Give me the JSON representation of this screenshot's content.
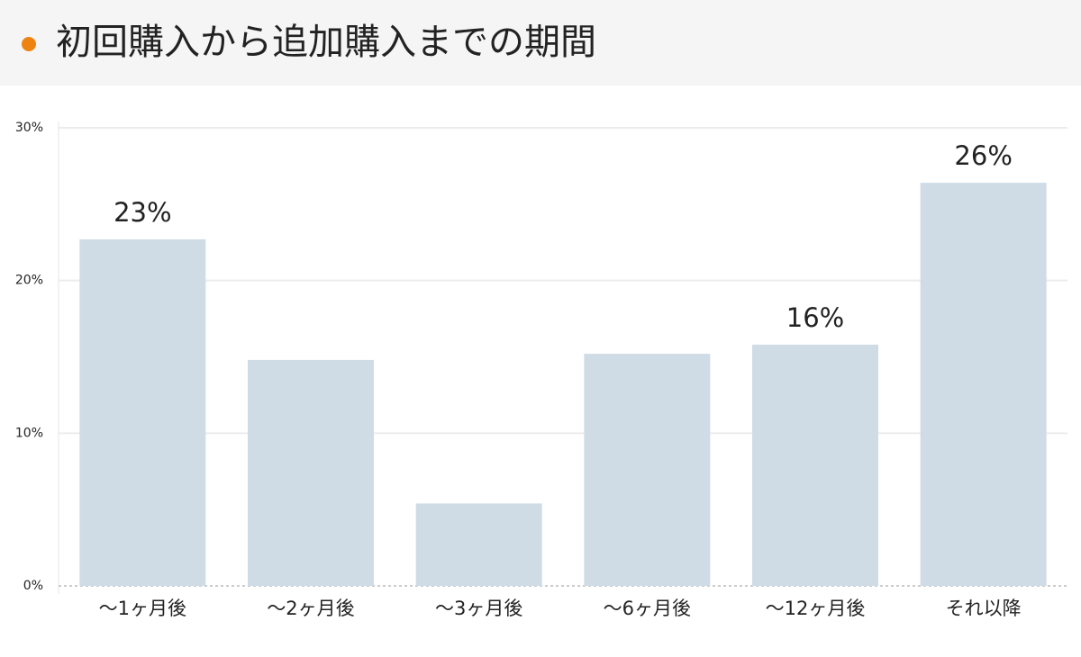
{
  "chart_data": {
    "type": "bar",
    "title": "初回購入から追加購入までの期間",
    "categories": [
      "〜1ヶ月後",
      "〜2ヶ月後",
      "〜3ヶ月後",
      "〜6ヶ月後",
      "〜12ヶ月後",
      "それ以降"
    ],
    "values": [
      22.7,
      14.8,
      5.4,
      15.2,
      15.8,
      26.4
    ],
    "value_labels": [
      "23%",
      null,
      null,
      null,
      "16%",
      "26%"
    ],
    "color": "#cfdce6",
    "ylim": [
      0,
      30
    ],
    "yticks": [
      {
        "value": 0,
        "label": "0%"
      },
      {
        "value": 10,
        "label": "10%"
      },
      {
        "value": 20,
        "label": "20%"
      },
      {
        "value": 30,
        "label": "30%"
      }
    ],
    "grid": true
  }
}
